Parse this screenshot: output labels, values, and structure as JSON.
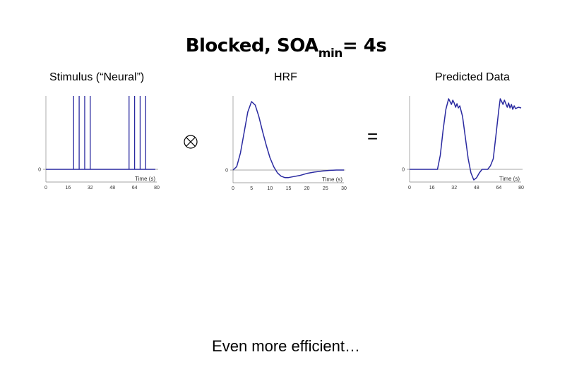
{
  "title": {
    "main": "Blocked, SOA",
    "sub": "min",
    "suffix": "= 4s"
  },
  "panels": [
    {
      "label": "Stimulus (“Neural”)",
      "y_tick": "0",
      "x_label": "Time (s)",
      "x_ticks": [
        "0",
        "16",
        "32",
        "48",
        "64",
        "80"
      ]
    },
    {
      "label": "HRF",
      "y_tick": "0",
      "x_label": "Time (s)",
      "x_ticks": [
        "0",
        "5",
        "10",
        "15",
        "20",
        "25",
        "30"
      ]
    },
    {
      "label": "Predicted Data",
      "y_tick": "0",
      "x_label": "Time (s)",
      "x_ticks": [
        "0",
        "16",
        "32",
        "48",
        "64",
        "80"
      ]
    }
  ],
  "operators": {
    "convolve": "⊗",
    "equals": "="
  },
  "footer": "Even more efficient…",
  "colors": {
    "line": "#2a2aa0",
    "axis": "#888888"
  },
  "chart_data": [
    {
      "type": "line",
      "name": "stimulus",
      "xlim": [
        0,
        80
      ],
      "events": [
        20,
        24,
        28,
        32,
        60,
        64,
        68,
        72
      ]
    },
    {
      "type": "line",
      "name": "hrf",
      "xlim": [
        0,
        30
      ],
      "x": [
        0,
        1,
        2,
        3,
        4,
        5,
        6,
        7,
        8,
        9,
        10,
        11,
        12,
        13,
        14,
        15,
        16,
        18,
        20,
        22,
        24,
        26,
        28,
        30
      ],
      "y": [
        0,
        0.05,
        0.25,
        0.55,
        0.85,
        1.0,
        0.95,
        0.78,
        0.56,
        0.36,
        0.18,
        0.05,
        -0.04,
        -0.09,
        -0.11,
        -0.11,
        -0.1,
        -0.08,
        -0.05,
        -0.03,
        -0.015,
        -0.005,
        0,
        0
      ]
    },
    {
      "type": "line",
      "name": "predicted",
      "xlim": [
        0,
        80
      ],
      "x": [
        0,
        20,
        22,
        24,
        26,
        28,
        29,
        30,
        31,
        32,
        33,
        34,
        35,
        36,
        38,
        40,
        42,
        44,
        46,
        48,
        50,
        52,
        54,
        56,
        58,
        60,
        62,
        64,
        65,
        66,
        67,
        68,
        69,
        70,
        71,
        72,
        73,
        74,
        75,
        76,
        78,
        80
      ],
      "y": [
        0,
        0,
        0.2,
        0.55,
        0.85,
        1.0,
        0.96,
        0.92,
        0.98,
        0.94,
        0.88,
        0.93,
        0.87,
        0.9,
        0.75,
        0.45,
        0.15,
        -0.05,
        -0.15,
        -0.12,
        -0.05,
        0,
        0,
        0,
        0.05,
        0.15,
        0.5,
        0.85,
        1.0,
        0.96,
        0.92,
        0.98,
        0.93,
        0.88,
        0.94,
        0.87,
        0.92,
        0.85,
        0.9,
        0.86,
        0.88,
        0.87
      ]
    }
  ]
}
